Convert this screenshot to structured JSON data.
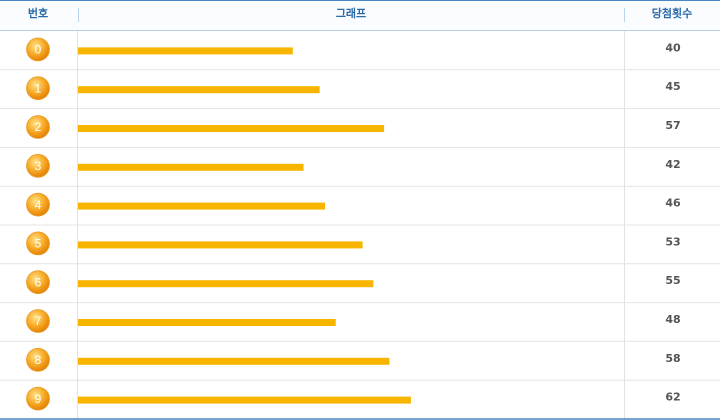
{
  "chart_data": {
    "type": "bar",
    "headers": [
      "번호",
      "그래프",
      "당첨횟수"
    ],
    "categories": [
      "0",
      "1",
      "2",
      "3",
      "4",
      "5",
      "6",
      "7",
      "8",
      "9"
    ],
    "values": [
      40,
      45,
      57,
      42,
      46,
      53,
      55,
      48,
      58,
      62
    ],
    "color": "#f7b500"
  }
}
